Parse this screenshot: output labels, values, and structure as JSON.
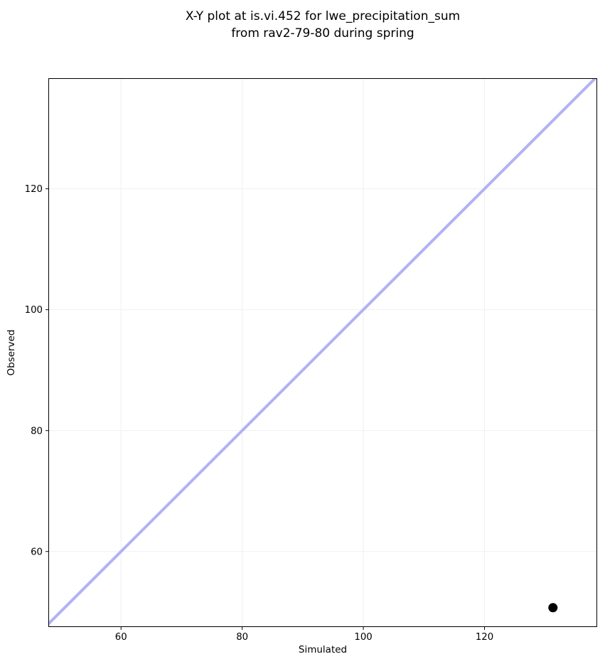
{
  "figure": {
    "title_line1": "X-Y plot at is.vi.452 for lwe_precipitation_sum",
    "title_line2": "from rav2-79-80 during spring"
  },
  "chart_data": {
    "type": "scatter",
    "title": "X-Y plot at is.vi.452 for lwe_precipitation_sum\nfrom rav2-79-80 during spring",
    "xlabel": "Simulated",
    "ylabel": "Observed",
    "xlim": [
      48.0,
      138.6
    ],
    "ylim": [
      47.5,
      138.3
    ],
    "xticks": [
      60,
      80,
      100,
      120
    ],
    "yticks": [
      60,
      80,
      100,
      120
    ],
    "grid": true,
    "grid_color": "#f0f0f0",
    "spine_color": "#000000",
    "tick_label_color": "#000000",
    "background": "#ffffff",
    "legend": false,
    "series": [
      {
        "name": "identity-line",
        "type": "line",
        "color": "#b2b2f5",
        "line_width": 4,
        "x": [
          48.0,
          138.6
        ],
        "y": [
          48.0,
          138.6
        ]
      },
      {
        "name": "observations",
        "type": "scatter",
        "color": "#000000",
        "marker": "circle",
        "marker_diameter": 13,
        "x": [
          131.3
        ],
        "y": [
          50.7
        ]
      }
    ]
  }
}
